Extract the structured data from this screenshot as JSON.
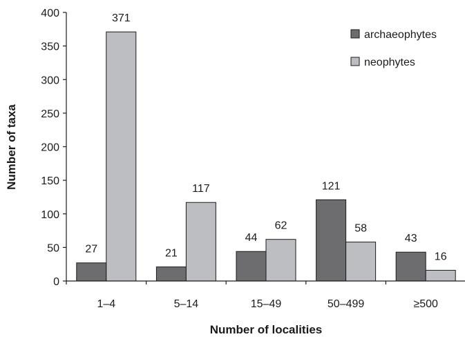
{
  "chart_data": {
    "type": "bar",
    "title": "",
    "xlabel": "Number of localities",
    "ylabel": "Number of taxa",
    "categories": [
      "1–4",
      "5–14",
      "15–49",
      "50–499",
      "≥500"
    ],
    "yticks": [
      "0",
      "50",
      "100",
      "150",
      "200",
      "250",
      "300",
      "350",
      "400"
    ],
    "ylim": [
      0,
      400
    ],
    "grid": false,
    "legend_position": "top-right",
    "series": [
      {
        "name": "archaeophytes",
        "color": "#6d6d70",
        "values": [
          27,
          21,
          44,
          121,
          43
        ],
        "labels": [
          "27",
          "21",
          "44",
          "121",
          "43"
        ]
      },
      {
        "name": "neophytes",
        "color": "#bdbec2",
        "values": [
          371,
          117,
          62,
          58,
          16
        ],
        "labels": [
          "371",
          "117",
          "62",
          "58",
          "16"
        ]
      }
    ]
  }
}
